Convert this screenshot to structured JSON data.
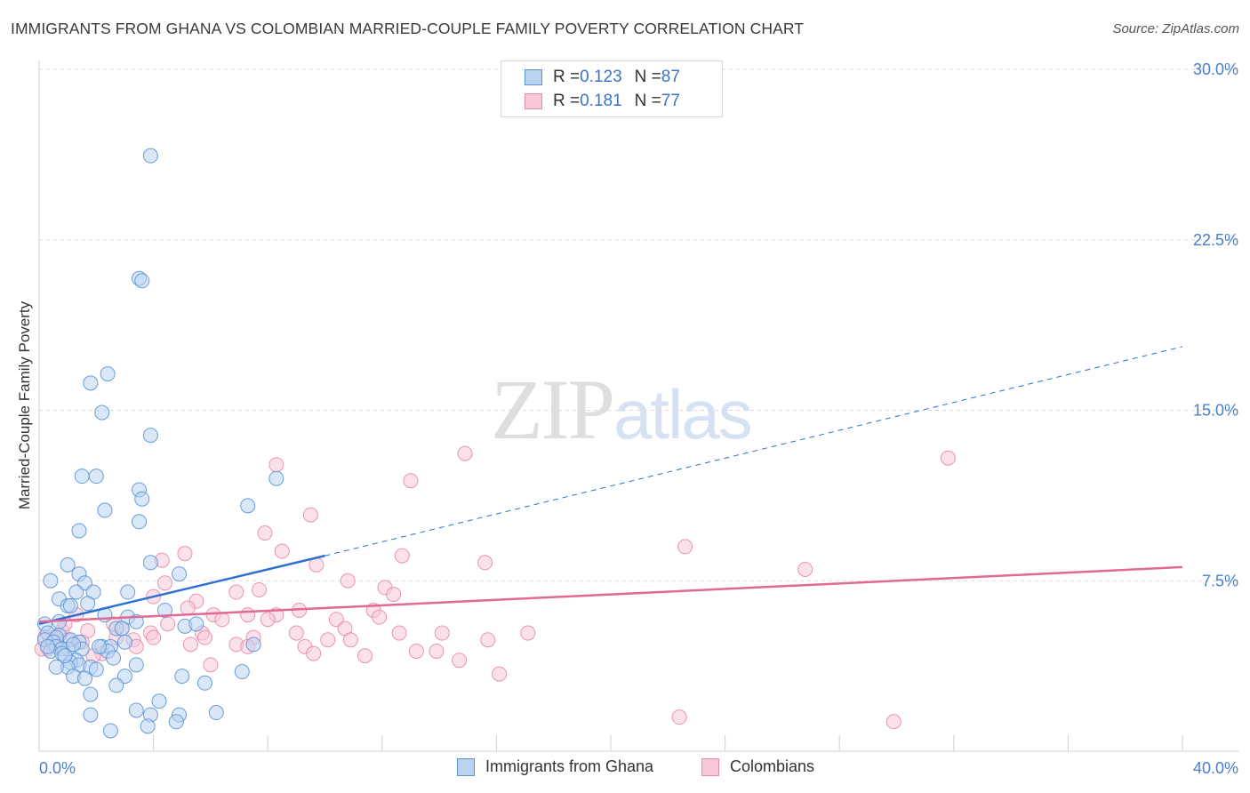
{
  "title": "IMMIGRANTS FROM GHANA VS COLOMBIAN MARRIED-COUPLE FAMILY POVERTY CORRELATION CHART",
  "source": "Source: ZipAtlas.com",
  "watermark": {
    "part1": "ZIP",
    "part2": "atlas"
  },
  "legend_top": {
    "rows": [
      {
        "r_label": "R = ",
        "r_value": "0.123",
        "n_label": "N = ",
        "n_value": "87"
      },
      {
        "r_label": "R = ",
        "r_value": "0.181",
        "n_label": "N = ",
        "n_value": "77"
      }
    ]
  },
  "colors": {
    "ghana_fill": "#b9d3f0",
    "ghana_stroke": "#5b93d6",
    "ghana_line": "#2e6fcf",
    "colombian_fill": "#f8c8d8",
    "colombian_stroke": "#e88aaa",
    "colombian_line": "#e06a93",
    "tick_text": "#4a7fc9",
    "grid": "#dcdcdc"
  },
  "chart_data": {
    "type": "scatter",
    "title": "IMMIGRANTS FROM GHANA VS COLOMBIAN MARRIED-COUPLE FAMILY POVERTY CORRELATION CHART",
    "xlabel": "",
    "ylabel": "Married-Couple Family Poverty",
    "xlim": [
      0,
      40
    ],
    "ylim": [
      0,
      30
    ],
    "x_tick_labels": [
      "0.0%",
      "40.0%"
    ],
    "y_ticks": [
      7.5,
      15.0,
      22.5,
      30.0
    ],
    "y_tick_labels": [
      "7.5%",
      "15.0%",
      "22.5%",
      "30.0%"
    ],
    "grid": true,
    "series": [
      {
        "name": "Immigrants from Ghana",
        "R": 0.123,
        "N": 87,
        "trend": {
          "x": [
            0,
            10
          ],
          "y": [
            5.6,
            8.6
          ],
          "dashed_extension_to": [
            40,
            17.8
          ]
        },
        "points": [
          [
            3.9,
            26.2
          ],
          [
            3.5,
            20.8
          ],
          [
            3.6,
            20.7
          ],
          [
            2.4,
            16.6
          ],
          [
            1.8,
            16.2
          ],
          [
            2.2,
            14.9
          ],
          [
            3.9,
            13.9
          ],
          [
            1.5,
            12.1
          ],
          [
            2.0,
            12.1
          ],
          [
            8.3,
            12.0
          ],
          [
            3.5,
            11.5
          ],
          [
            3.6,
            11.1
          ],
          [
            2.3,
            10.6
          ],
          [
            7.3,
            10.8
          ],
          [
            3.5,
            10.1
          ],
          [
            1.4,
            9.7
          ],
          [
            3.9,
            8.3
          ],
          [
            1.0,
            8.2
          ],
          [
            4.9,
            7.8
          ],
          [
            1.4,
            7.8
          ],
          [
            0.4,
            7.5
          ],
          [
            1.6,
            7.4
          ],
          [
            1.3,
            7.0
          ],
          [
            1.9,
            7.0
          ],
          [
            3.1,
            7.0
          ],
          [
            0.7,
            6.7
          ],
          [
            1.7,
            6.5
          ],
          [
            1.0,
            6.4
          ],
          [
            1.1,
            6.4
          ],
          [
            4.4,
            6.2
          ],
          [
            2.3,
            6.0
          ],
          [
            3.1,
            5.9
          ],
          [
            0.7,
            5.7
          ],
          [
            3.4,
            5.7
          ],
          [
            0.2,
            5.6
          ],
          [
            5.1,
            5.5
          ],
          [
            2.7,
            5.4
          ],
          [
            2.9,
            5.4
          ],
          [
            0.3,
            5.2
          ],
          [
            0.7,
            5.1
          ],
          [
            0.6,
            5.0
          ],
          [
            1.1,
            4.9
          ],
          [
            0.2,
            4.9
          ],
          [
            1.4,
            4.8
          ],
          [
            0.5,
            4.8
          ],
          [
            7.5,
            4.7
          ],
          [
            3.0,
            4.8
          ],
          [
            2.2,
            4.6
          ],
          [
            2.5,
            4.6
          ],
          [
            0.6,
            4.6
          ],
          [
            1.0,
            4.5
          ],
          [
            0.8,
            4.5
          ],
          [
            1.5,
            4.5
          ],
          [
            2.4,
            4.4
          ],
          [
            0.4,
            4.4
          ],
          [
            0.8,
            4.3
          ],
          [
            2.6,
            4.1
          ],
          [
            1.3,
            4.0
          ],
          [
            1.1,
            3.9
          ],
          [
            1.4,
            3.8
          ],
          [
            1.0,
            3.7
          ],
          [
            3.4,
            3.8
          ],
          [
            0.6,
            3.7
          ],
          [
            1.8,
            3.7
          ],
          [
            2.0,
            3.6
          ],
          [
            7.1,
            3.5
          ],
          [
            5.0,
            3.3
          ],
          [
            1.2,
            3.3
          ],
          [
            1.6,
            3.2
          ],
          [
            3.0,
            3.3
          ],
          [
            5.8,
            3.0
          ],
          [
            2.7,
            2.9
          ],
          [
            1.8,
            2.5
          ],
          [
            4.2,
            2.2
          ],
          [
            3.4,
            1.8
          ],
          [
            6.2,
            1.7
          ],
          [
            3.9,
            1.6
          ],
          [
            1.8,
            1.6
          ],
          [
            4.9,
            1.6
          ],
          [
            4.8,
            1.3
          ],
          [
            3.8,
            1.1
          ],
          [
            2.5,
            0.9
          ],
          [
            1.2,
            4.7
          ],
          [
            0.9,
            4.2
          ],
          [
            2.1,
            4.6
          ],
          [
            0.3,
            4.6
          ],
          [
            5.5,
            5.6
          ]
        ]
      },
      {
        "name": "Colombians",
        "R": 0.181,
        "N": 77,
        "trend": {
          "x": [
            0,
            40
          ],
          "y": [
            5.7,
            8.1
          ]
        },
        "points": [
          [
            14.9,
            13.1
          ],
          [
            31.8,
            12.9
          ],
          [
            8.3,
            12.6
          ],
          [
            13.0,
            11.9
          ],
          [
            9.5,
            10.4
          ],
          [
            7.9,
            9.6
          ],
          [
            22.6,
            9.0
          ],
          [
            5.1,
            8.7
          ],
          [
            8.5,
            8.8
          ],
          [
            12.7,
            8.6
          ],
          [
            4.3,
            8.4
          ],
          [
            15.6,
            8.3
          ],
          [
            9.7,
            8.2
          ],
          [
            26.8,
            8.0
          ],
          [
            10.8,
            7.5
          ],
          [
            4.4,
            7.4
          ],
          [
            12.1,
            7.2
          ],
          [
            7.7,
            7.1
          ],
          [
            6.9,
            7.0
          ],
          [
            12.4,
            6.9
          ],
          [
            4.0,
            6.8
          ],
          [
            5.5,
            6.6
          ],
          [
            5.2,
            6.3
          ],
          [
            9.1,
            6.2
          ],
          [
            1.3,
            6.0
          ],
          [
            6.1,
            6.0
          ],
          [
            7.3,
            6.0
          ],
          [
            8.3,
            6.0
          ],
          [
            11.7,
            6.2
          ],
          [
            11.9,
            5.9
          ],
          [
            10.4,
            5.8
          ],
          [
            6.4,
            5.8
          ],
          [
            8.0,
            5.8
          ],
          [
            4.5,
            5.6
          ],
          [
            2.6,
            5.6
          ],
          [
            10.7,
            5.4
          ],
          [
            5.7,
            5.2
          ],
          [
            3.9,
            5.2
          ],
          [
            1.7,
            5.3
          ],
          [
            0.8,
            5.3
          ],
          [
            12.6,
            5.2
          ],
          [
            14.1,
            5.2
          ],
          [
            17.1,
            5.2
          ],
          [
            9.0,
            5.2
          ],
          [
            5.8,
            5.0
          ],
          [
            7.5,
            5.0
          ],
          [
            2.7,
            5.0
          ],
          [
            0.5,
            5.0
          ],
          [
            0.2,
            5.0
          ],
          [
            1.0,
            4.9
          ],
          [
            10.1,
            4.9
          ],
          [
            10.9,
            4.9
          ],
          [
            15.7,
            4.9
          ],
          [
            3.3,
            4.9
          ],
          [
            0.6,
            4.8
          ],
          [
            6.9,
            4.7
          ],
          [
            7.3,
            4.6
          ],
          [
            9.3,
            4.6
          ],
          [
            0.3,
            4.5
          ],
          [
            0.1,
            4.5
          ],
          [
            13.2,
            4.4
          ],
          [
            13.9,
            4.4
          ],
          [
            2.2,
            4.3
          ],
          [
            9.6,
            4.3
          ],
          [
            11.4,
            4.2
          ],
          [
            14.7,
            4.0
          ],
          [
            6.0,
            3.8
          ],
          [
            16.1,
            3.4
          ],
          [
            22.4,
            1.5
          ],
          [
            29.9,
            1.3
          ],
          [
            3.4,
            4.6
          ],
          [
            1.9,
            4.2
          ],
          [
            5.3,
            4.7
          ],
          [
            0.9,
            5.6
          ],
          [
            2.9,
            5.4
          ],
          [
            4.0,
            5.0
          ],
          [
            1.5,
            4.8
          ]
        ]
      }
    ]
  },
  "legend_bottom": {
    "items": [
      {
        "label": "Immigrants from Ghana"
      },
      {
        "label": "Colombians"
      }
    ]
  }
}
